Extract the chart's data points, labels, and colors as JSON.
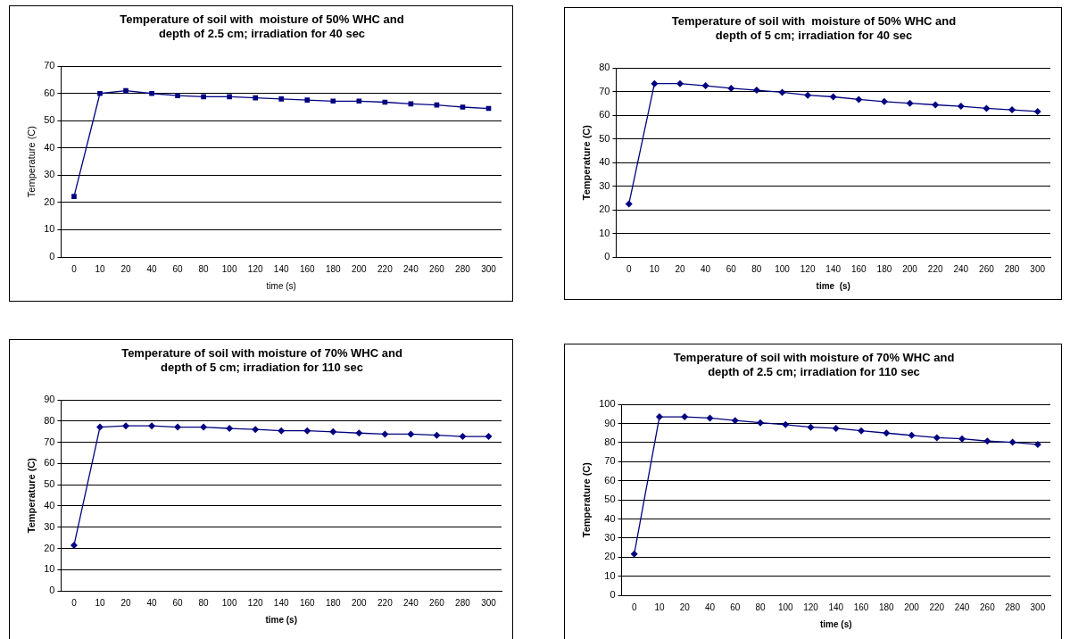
{
  "chart_data": [
    {
      "type": "line",
      "title": "Temperature of soil with  moisture of 50% WHC and\ndepth of 2.5 cm; irradiation for 40 sec",
      "xlabel": "time (s)",
      "ylabel": "Temperature (C)",
      "categories": [
        "0",
        "10",
        "20",
        "40",
        "60",
        "80",
        "100",
        "120",
        "140",
        "160",
        "180",
        "200",
        "220",
        "240",
        "260",
        "280",
        "300"
      ],
      "series": [
        {
          "color": "#000080",
          "values": [
            22.2,
            60,
            61,
            60,
            59.2,
            58.8,
            58.8,
            58.4,
            58,
            57.6,
            57.2,
            57.2,
            56.8,
            56.2,
            55.8,
            55,
            54.5
          ]
        }
      ],
      "ylim": [
        0,
        70
      ],
      "yticks": [
        0,
        10,
        20,
        30,
        40,
        50,
        60,
        70
      ],
      "grid": "y",
      "legend": false,
      "marker": "square",
      "line_style": "solid"
    },
    {
      "type": "line",
      "title": "Temperature of soil with  moisture of 50% WHC and\ndepth of 5 cm; irradiation for 40 sec",
      "xlabel": "time  (s)",
      "ylabel": "Temperature (C)",
      "categories": [
        "0",
        "10",
        "20",
        "40",
        "60",
        "80",
        "100",
        "120",
        "140",
        "160",
        "180",
        "200",
        "220",
        "240",
        "260",
        "280",
        "300"
      ],
      "series": [
        {
          "color": "#000080",
          "values": [
            22.5,
            73.4,
            73.4,
            72.5,
            71.4,
            70.6,
            69.7,
            68.5,
            67.8,
            66.7,
            65.8,
            65.1,
            64.4,
            63.8,
            62.9,
            62.3,
            61.6
          ]
        }
      ],
      "ylim": [
        0,
        80
      ],
      "yticks": [
        0,
        10,
        20,
        30,
        40,
        50,
        60,
        70,
        80
      ],
      "grid": "y",
      "legend": false,
      "marker": "diamond",
      "line_style": "solid"
    },
    {
      "type": "line",
      "title": "Temperature of soil with moisture of 70% WHC and\ndepth of 5 cm; irradiation for 110 sec",
      "xlabel": "time (s)",
      "ylabel": "Temperature (C)",
      "categories": [
        "0",
        "10",
        "20",
        "40",
        "60",
        "80",
        "100",
        "120",
        "140",
        "160",
        "180",
        "200",
        "220",
        "240",
        "260",
        "280",
        "300"
      ],
      "series": [
        {
          "color": "#000080",
          "values": [
            21.5,
            77.2,
            77.8,
            77.8,
            77.2,
            77.2,
            76.6,
            76.1,
            75.5,
            75.5,
            75,
            74.4,
            73.9,
            73.9,
            73.4,
            72.8,
            72.8
          ]
        }
      ],
      "ylim": [
        0,
        90
      ],
      "yticks": [
        0,
        10,
        20,
        30,
        40,
        50,
        60,
        70,
        80,
        90
      ],
      "grid": "y",
      "legend": false,
      "marker": "diamond",
      "line_style": "solid"
    },
    {
      "type": "line",
      "title": "Temperature of soil with moisture of 70% WHC and\ndepth of 2.5 cm; irradiation for 110 sec",
      "xlabel": "time (s)",
      "ylabel": "Temperature (C)",
      "categories": [
        "0",
        "10",
        "20",
        "40",
        "60",
        "80",
        "100",
        "120",
        "140",
        "160",
        "180",
        "200",
        "220",
        "240",
        "260",
        "280",
        "300"
      ],
      "series": [
        {
          "color": "#000080",
          "values": [
            21.6,
            93.5,
            93.5,
            92.9,
            91.6,
            90.4,
            89.4,
            88.1,
            87.5,
            86.2,
            85,
            83.8,
            82.6,
            82,
            80.8,
            80.2,
            79
          ]
        }
      ],
      "ylim": [
        0,
        100
      ],
      "yticks": [
        0,
        10,
        20,
        30,
        40,
        50,
        60,
        70,
        80,
        90,
        100
      ],
      "grid": "y",
      "legend": false,
      "marker": "diamond",
      "line_style": "solid"
    }
  ]
}
